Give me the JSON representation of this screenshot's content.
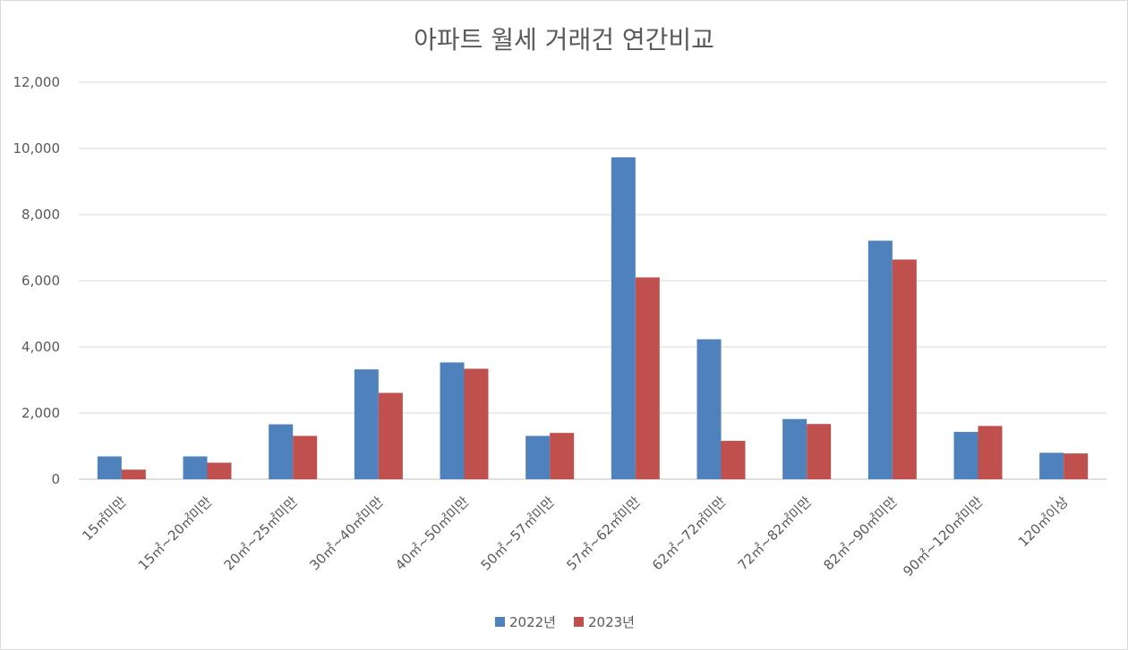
{
  "chart_data": {
    "type": "bar",
    "title": "아파트 월세 거래건 연간비교",
    "xlabel": "",
    "ylabel": "",
    "ylim": [
      0,
      12000
    ],
    "yticks": [
      0,
      2000,
      4000,
      6000,
      8000,
      10000,
      12000
    ],
    "ytick_labels": [
      "0",
      "2,000",
      "4,000",
      "6,000",
      "8,000",
      "10,000",
      "12,000"
    ],
    "grid": true,
    "legend_position": "bottom",
    "categories": [
      "15㎡미만",
      "15㎡~20㎡미만",
      "20㎡~25㎡미만",
      "30㎡~40㎡미만",
      "40㎡~50㎡미만",
      "50㎡~57㎡미만",
      "57㎡~62㎡미만",
      "62㎡~72㎡미만",
      "72㎡~82㎡미만",
      "82㎡~90㎡미만",
      "90㎡~120㎡미만",
      "120㎡이상"
    ],
    "series": [
      {
        "name": "2022년",
        "color": "#4f81bd",
        "values": [
          690,
          690,
          1660,
          3320,
          3530,
          1310,
          9730,
          4230,
          1820,
          7210,
          1430,
          800
        ]
      },
      {
        "name": "2023년",
        "color": "#c0504d",
        "values": [
          290,
          500,
          1310,
          2610,
          3340,
          1400,
          6100,
          1160,
          1670,
          6640,
          1610,
          780
        ]
      }
    ]
  }
}
